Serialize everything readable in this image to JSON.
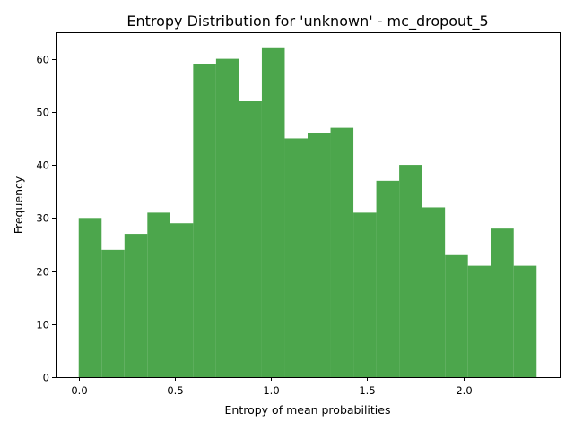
{
  "chart_data": {
    "type": "bar",
    "title": "Entropy Distribution for 'unknown' - mc_dropout_5",
    "xlabel": "Entropy of mean probabilities",
    "ylabel": "Frequency",
    "bin_start": 0.0,
    "bin_width": 0.119,
    "values": [
      30,
      24,
      27,
      31,
      29,
      59,
      60,
      52,
      62,
      45,
      46,
      47,
      31,
      37,
      40,
      32,
      23,
      21,
      28,
      21
    ],
    "xlim": [
      -0.12,
      2.5
    ],
    "ylim": [
      0,
      65
    ],
    "xticks": [
      0.0,
      0.5,
      1.0,
      1.5,
      2.0
    ],
    "xtick_labels": [
      "0.0",
      "0.5",
      "1.0",
      "1.5",
      "2.0"
    ],
    "yticks": [
      0,
      10,
      20,
      30,
      40,
      50,
      60
    ],
    "ytick_labels": [
      "0",
      "10",
      "20",
      "30",
      "40",
      "50",
      "60"
    ],
    "bar_color": "#4ca64c",
    "grid": false,
    "legend": "none"
  }
}
